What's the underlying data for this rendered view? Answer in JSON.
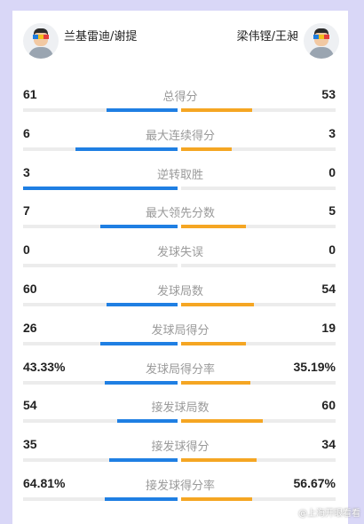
{
  "colors": {
    "left_bar": "#1f7fe3",
    "right_bar": "#f5a623",
    "track": "#ececec",
    "page_bg": "#d9d7f7"
  },
  "players": {
    "left": {
      "name": "兰基雷迪/谢提",
      "avatar_icon": "player-avatar-icon"
    },
    "right": {
      "name": "梁伟铿/王昶",
      "avatar_icon": "player-avatar-icon"
    }
  },
  "stats": [
    {
      "label": "总得分",
      "left": "61",
      "right": "53",
      "left_fraction": 0.46,
      "right_fraction": 0.46
    },
    {
      "label": "最大连续得分",
      "left": "6",
      "right": "3",
      "left_fraction": 0.66,
      "right_fraction": 0.33
    },
    {
      "label": "逆转取胜",
      "left": "3",
      "right": "0",
      "left_fraction": 1.0,
      "right_fraction": 0.0
    },
    {
      "label": "最大领先分数",
      "left": "7",
      "right": "5",
      "left_fraction": 0.5,
      "right_fraction": 0.42
    },
    {
      "label": "发球失误",
      "left": "0",
      "right": "0",
      "left_fraction": 0.0,
      "right_fraction": 0.0
    },
    {
      "label": "发球局数",
      "left": "60",
      "right": "54",
      "left_fraction": 0.46,
      "right_fraction": 0.47
    },
    {
      "label": "发球局得分",
      "left": "26",
      "right": "19",
      "left_fraction": 0.5,
      "right_fraction": 0.42
    },
    {
      "label": "发球局得分率",
      "left": "43.33%",
      "right": "35.19%",
      "left_fraction": 0.47,
      "right_fraction": 0.45
    },
    {
      "label": "接发球局数",
      "left": "54",
      "right": "60",
      "left_fraction": 0.39,
      "right_fraction": 0.53
    },
    {
      "label": "接发球得分",
      "left": "35",
      "right": "34",
      "left_fraction": 0.44,
      "right_fraction": 0.49
    },
    {
      "label": "接发球得分率",
      "left": "64.81%",
      "right": "56.67%",
      "left_fraction": 0.47,
      "right_fraction": 0.46
    }
  ],
  "watermark": "@上海开眼看看"
}
